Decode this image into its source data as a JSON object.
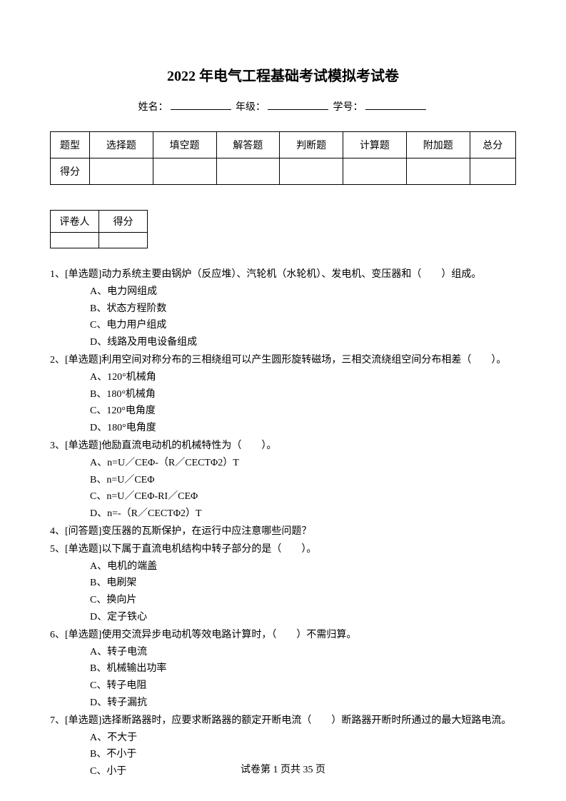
{
  "title": "2022 年电气工程基础考试模拟考试卷",
  "info": {
    "name_label": "姓名：",
    "grade_label": "年级：",
    "id_label": "学号："
  },
  "score_table": {
    "row1": [
      "题型",
      "选择题",
      "填空题",
      "解答题",
      "判断题",
      "计算题",
      "附加题",
      "总分"
    ],
    "row2_label": "得分"
  },
  "grader_table": {
    "col1": "评卷人",
    "col2": "得分"
  },
  "questions": [
    {
      "num": "1、",
      "type": "[单选题]",
      "text": "动力系统主要由锅炉（反应堆）、汽轮机（水轮机）、发电机、变压器和（　　）组成。",
      "options": [
        "A、电力网组成",
        "B、状态方程阶数",
        "C、电力用户组成",
        "D、线路及用电设备组成"
      ]
    },
    {
      "num": "2、",
      "type": "[单选题]",
      "text": "利用空间对称分布的三相绕组可以产生圆形旋转磁场，三相交流绕组空间分布相差（　　）。",
      "options": [
        "A、120°机械角",
        "B、180°机械角",
        "C、120°电角度",
        "D、180°电角度"
      ]
    },
    {
      "num": "3、",
      "type": "[单选题]",
      "text": "他励直流电动机的机械特性为（　　）。",
      "options": [
        "A、n=U／CEΦ-（R／CECTΦ2）T",
        "B、n=U／CEΦ",
        "C、n=U／CEΦ-RI／CEΦ",
        "D、n=-（R／CECTΦ2）T"
      ]
    },
    {
      "num": "4、",
      "type": "[问答题]",
      "text": "变压器的瓦斯保护，在运行中应注意哪些问题？",
      "options": []
    },
    {
      "num": "5、",
      "type": "[单选题]",
      "text": "以下属于直流电机结构中转子部分的是（　　）。",
      "options": [
        "A、电机的端盖",
        "B、电刷架",
        "C、换向片",
        "D、定子铁心"
      ]
    },
    {
      "num": "6、",
      "type": "[单选题]",
      "text": "使用交流异步电动机等效电路计算时，（　　）不需归算。",
      "options": [
        "A、转子电流",
        "B、机械输出功率",
        "C、转子电阻",
        "D、转子漏抗"
      ]
    },
    {
      "num": "7、",
      "type": "[单选题]",
      "text": "选择断路器时，应要求断路器的额定开断电流（　　）断路器开断时所通过的最大短路电流。",
      "options": [
        "A、不大于",
        "B、不小于",
        "C、小于"
      ]
    }
  ],
  "footer": {
    "text": "试卷第 1 页共 35 页"
  }
}
